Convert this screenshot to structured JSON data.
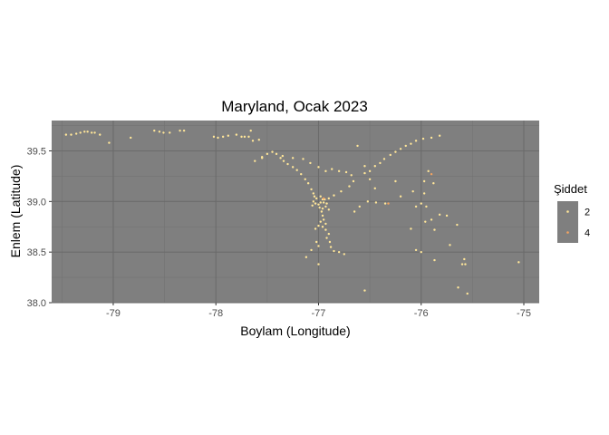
{
  "chart_data": {
    "type": "scatter",
    "title": "Maryland, Ocak 2023",
    "xlabel": "Boylam (Longitude)",
    "ylabel": "Enlem (Latitude)",
    "xlim": [
      -79.6,
      -74.85
    ],
    "ylim": [
      38.0,
      39.8
    ],
    "xticks": [
      -79,
      -78,
      -77,
      -76,
      -75
    ],
    "xtick_labels": [
      "-79",
      "-78",
      "-77",
      "-76",
      "-75"
    ],
    "yticks": [
      38.0,
      38.5,
      39.0,
      39.5
    ],
    "ytick_labels": [
      "38.0",
      "38.5",
      "39.0",
      "39.5"
    ],
    "grid": true,
    "panel_background": "#7f7f7f",
    "legend": {
      "title": "Şiddet",
      "placement": "right",
      "entries": [
        {
          "label": "2",
          "color": "#ffe699"
        },
        {
          "label": "4",
          "color": "#f4a460"
        }
      ]
    },
    "series": [
      {
        "label": "2",
        "color": "#ffe699",
        "points": [
          [
            -79.46,
            39.66
          ],
          [
            -79.41,
            39.66
          ],
          [
            -79.36,
            39.67
          ],
          [
            -79.32,
            39.68
          ],
          [
            -79.28,
            39.69
          ],
          [
            -79.25,
            39.69
          ],
          [
            -79.21,
            39.68
          ],
          [
            -79.18,
            39.68
          ],
          [
            -79.13,
            39.66
          ],
          [
            -79.04,
            39.58
          ],
          [
            -78.83,
            39.63
          ],
          [
            -78.6,
            39.7
          ],
          [
            -78.55,
            39.69
          ],
          [
            -78.51,
            39.68
          ],
          [
            -78.45,
            39.68
          ],
          [
            -78.35,
            39.7
          ],
          [
            -78.31,
            39.7
          ],
          [
            -78.02,
            39.64
          ],
          [
            -77.98,
            39.63
          ],
          [
            -77.93,
            39.64
          ],
          [
            -77.88,
            39.65
          ],
          [
            -77.8,
            39.66
          ],
          [
            -77.75,
            39.64
          ],
          [
            -77.72,
            39.64
          ],
          [
            -77.68,
            39.64
          ],
          [
            -77.66,
            39.7
          ],
          [
            -77.64,
            39.6
          ],
          [
            -77.58,
            39.61
          ],
          [
            -77.55,
            39.44
          ],
          [
            -77.5,
            39.47
          ],
          [
            -77.45,
            39.49
          ],
          [
            -77.41,
            39.47
          ],
          [
            -77.37,
            39.43
          ],
          [
            -77.34,
            39.4
          ],
          [
            -77.3,
            39.37
          ],
          [
            -77.25,
            39.34
          ],
          [
            -77.21,
            39.31
          ],
          [
            -77.17,
            39.27
          ],
          [
            -77.13,
            39.22
          ],
          [
            -77.1,
            39.18
          ],
          [
            -77.07,
            39.12
          ],
          [
            -77.05,
            39.08
          ],
          [
            -77.04,
            39.05
          ],
          [
            -77.62,
            39.4
          ],
          [
            -77.55,
            39.43
          ],
          [
            -77.35,
            39.45
          ],
          [
            -77.25,
            39.43
          ],
          [
            -77.15,
            39.42
          ],
          [
            -77.08,
            39.38
          ],
          [
            -77.0,
            39.34
          ],
          [
            -76.93,
            39.3
          ],
          [
            -76.87,
            39.32
          ],
          [
            -76.8,
            39.3
          ],
          [
            -76.73,
            39.29
          ],
          [
            -76.68,
            39.26
          ],
          [
            -76.66,
            39.2
          ],
          [
            -76.7,
            39.15
          ],
          [
            -76.78,
            39.1
          ],
          [
            -76.85,
            39.06
          ],
          [
            -76.9,
            39.03
          ],
          [
            -76.95,
            38.99
          ],
          [
            -77.05,
            39.0
          ],
          [
            -77.03,
            38.98
          ],
          [
            -77.0,
            38.97
          ],
          [
            -76.98,
            38.99
          ],
          [
            -76.96,
            39.02
          ],
          [
            -77.02,
            39.03
          ],
          [
            -76.98,
            39.05
          ],
          [
            -76.94,
            39.02
          ],
          [
            -76.92,
            38.98
          ],
          [
            -77.06,
            38.96
          ],
          [
            -76.99,
            38.94
          ],
          [
            -76.96,
            38.93
          ],
          [
            -76.93,
            38.95
          ],
          [
            -76.9,
            38.92
          ],
          [
            -76.97,
            38.9
          ],
          [
            -76.96,
            38.86
          ],
          [
            -76.95,
            38.82
          ],
          [
            -76.93,
            38.78
          ],
          [
            -76.96,
            38.75
          ],
          [
            -76.93,
            38.72
          ],
          [
            -76.9,
            38.68
          ],
          [
            -76.92,
            38.64
          ],
          [
            -76.89,
            38.6
          ],
          [
            -76.88,
            38.55
          ],
          [
            -76.85,
            38.51
          ],
          [
            -76.98,
            38.8
          ],
          [
            -77.0,
            38.76
          ],
          [
            -77.03,
            38.73
          ],
          [
            -77.0,
            38.56
          ],
          [
            -77.02,
            38.6
          ],
          [
            -76.8,
            38.5
          ],
          [
            -76.5,
            39.3
          ],
          [
            -76.45,
            39.35
          ],
          [
            -76.4,
            39.38
          ],
          [
            -76.36,
            39.42
          ],
          [
            -76.3,
            39.46
          ],
          [
            -76.25,
            39.49
          ],
          [
            -76.2,
            39.52
          ],
          [
            -76.15,
            39.55
          ],
          [
            -76.1,
            39.57
          ],
          [
            -76.05,
            39.6
          ],
          [
            -75.98,
            39.62
          ],
          [
            -75.9,
            39.63
          ],
          [
            -75.82,
            39.65
          ],
          [
            -76.55,
            39.35
          ],
          [
            -76.55,
            39.28
          ],
          [
            -76.5,
            39.22
          ],
          [
            -76.45,
            39.13
          ],
          [
            -76.52,
            39.0
          ],
          [
            -76.44,
            38.99
          ],
          [
            -76.35,
            38.98
          ],
          [
            -76.2,
            39.05
          ],
          [
            -76.08,
            39.1
          ],
          [
            -75.97,
            39.08
          ],
          [
            -76.0,
            38.98
          ],
          [
            -75.95,
            38.95
          ],
          [
            -76.05,
            38.95
          ],
          [
            -75.88,
            39.18
          ],
          [
            -75.97,
            39.2
          ],
          [
            -75.93,
            39.3
          ],
          [
            -76.25,
            39.2
          ],
          [
            -76.62,
            39.55
          ],
          [
            -76.1,
            38.73
          ],
          [
            -75.96,
            38.8
          ],
          [
            -75.87,
            38.72
          ],
          [
            -75.9,
            38.82
          ],
          [
            -75.82,
            38.87
          ],
          [
            -75.75,
            38.86
          ],
          [
            -75.65,
            38.77
          ],
          [
            -75.72,
            38.57
          ],
          [
            -75.6,
            38.38
          ],
          [
            -75.58,
            38.43
          ],
          [
            -75.57,
            38.38
          ],
          [
            -75.64,
            38.15
          ],
          [
            -75.55,
            38.09
          ],
          [
            -75.87,
            38.42
          ],
          [
            -76.05,
            38.52
          ],
          [
            -76.0,
            38.5
          ],
          [
            -76.55,
            38.12
          ],
          [
            -75.05,
            38.4
          ],
          [
            -76.75,
            38.48
          ],
          [
            -77.0,
            38.38
          ],
          [
            -77.12,
            38.45
          ],
          [
            -77.07,
            38.52
          ],
          [
            -76.6,
            38.95
          ],
          [
            -76.65,
            38.9
          ]
        ]
      },
      {
        "label": "4",
        "color": "#f4a460",
        "points": [
          [
            -76.32,
            38.98
          ],
          [
            -75.9,
            39.27
          ],
          [
            -76.95,
            39.03
          ]
        ]
      }
    ]
  }
}
